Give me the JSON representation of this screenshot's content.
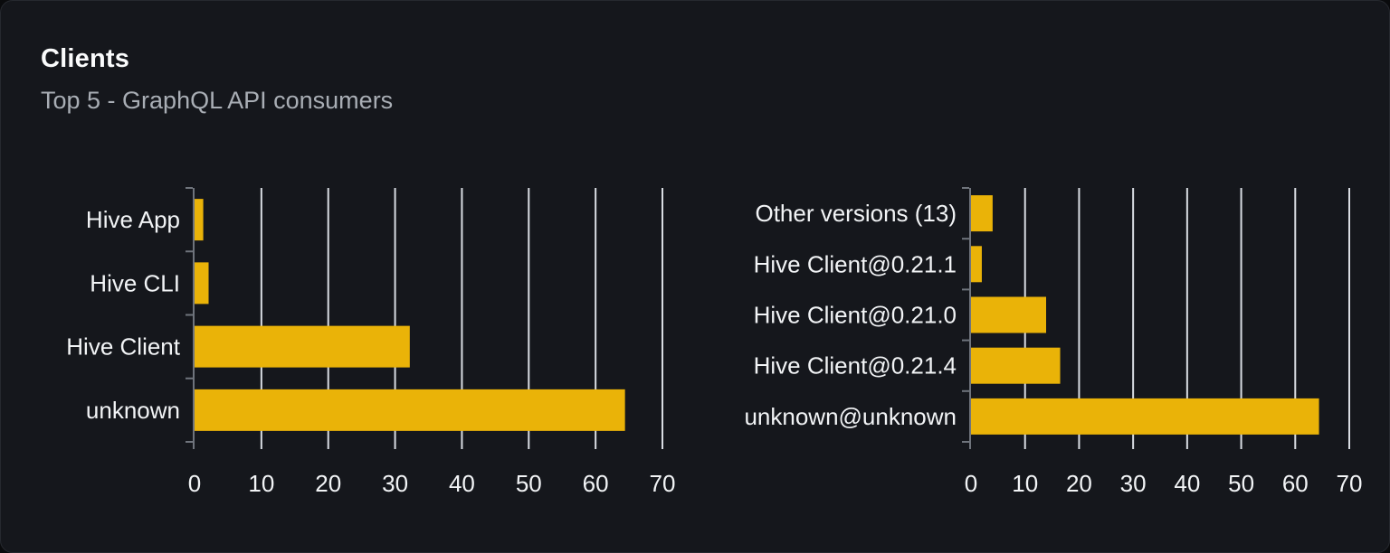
{
  "panel": {
    "title": "Clients",
    "subtitle": "Top 5 - GraphQL API consumers"
  },
  "colors": {
    "accent_bar": "#eab308",
    "page_background": "#0a0b0d",
    "panel_background": "#15171c",
    "panel_border": "#26292f",
    "gridline": "#d9dde3",
    "axis_line": "#6f747c",
    "label_text": "#f2f4f6",
    "title_text": "#fafbfc",
    "subtitle_text": "#a9aeb5"
  },
  "chart_data": [
    {
      "type": "bar",
      "orientation": "horizontal",
      "name": "clients-by-name",
      "title": "",
      "categories": [
        "Hive App",
        "Hive CLI",
        "Hive Client",
        "unknown"
      ],
      "values": [
        1.3,
        2.1,
        32.2,
        64.4
      ],
      "xlabel": "",
      "ylabel": "",
      "xlim": [
        0,
        70
      ],
      "xticks": [
        0,
        10,
        20,
        30,
        40,
        50,
        60,
        70
      ],
      "grid": true,
      "legend": false,
      "bar_color": "#eab308"
    },
    {
      "type": "bar",
      "orientation": "horizontal",
      "name": "clients-by-version",
      "title": "",
      "categories": [
        "Other versions (13)",
        "Hive Client@0.21.1",
        "Hive Client@0.21.0",
        "Hive Client@0.21.4",
        "unknown@unknown"
      ],
      "values": [
        4.0,
        2.0,
        13.9,
        16.5,
        64.4
      ],
      "xlabel": "",
      "ylabel": "",
      "xlim": [
        0,
        70
      ],
      "xticks": [
        0,
        10,
        20,
        30,
        40,
        50,
        60,
        70
      ],
      "grid": true,
      "legend": false,
      "bar_color": "#eab308"
    }
  ]
}
